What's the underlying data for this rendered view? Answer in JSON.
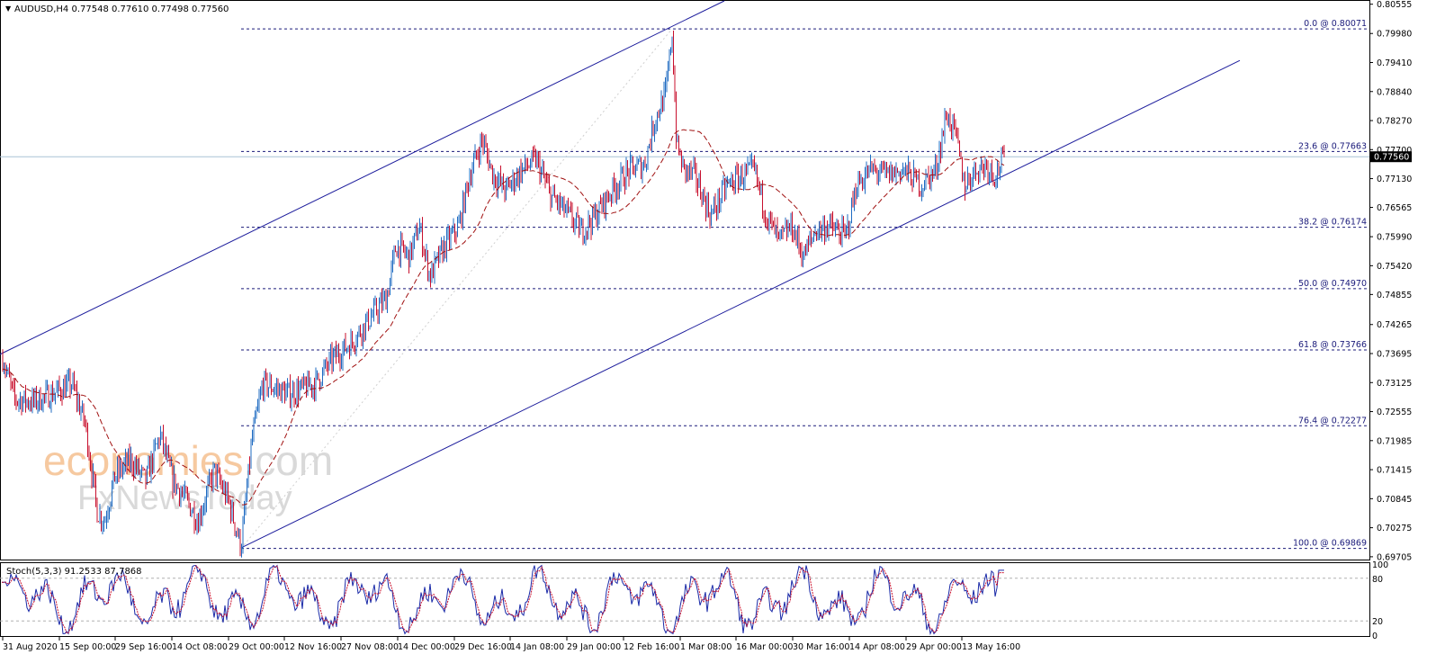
{
  "header": {
    "arrow": "▼",
    "text": "AUDUSD,H4  0.77548 0.77610 0.77498 0.77560"
  },
  "current_price_label": "0.77560",
  "stoch_header": "Stoch(5,3,3) 91.2533 87.7868",
  "watermark": {
    "part1": "economies",
    "part2": ".com",
    "line2": "FxNewsToday"
  },
  "colors": {
    "bull": "#1f6bc2",
    "bear": "#c8102e",
    "ma": "#a01010",
    "channel": "#1c1c9c",
    "fib": "#1a1a7a",
    "stoch_main": "#1a2aa8",
    "stoch_signal": "#c8102e"
  },
  "chart_data": {
    "type": "candlestick",
    "symbol": "AUDUSD",
    "timeframe": "H4",
    "ylim": [
      0.6965,
      0.8062
    ],
    "price_ticks": [
      "0.80555",
      "0.79980",
      "0.79410",
      "0.78840",
      "0.78270",
      "0.77700",
      "0.77130",
      "0.76565",
      "0.75990",
      "0.75420",
      "0.74855",
      "0.74265",
      "0.73695",
      "0.73125",
      "0.72555",
      "0.71985",
      "0.71415",
      "0.70845",
      "0.70275",
      "0.69705"
    ],
    "time_ticks": [
      "31 Aug 2020",
      "15 Sep 00:00",
      "29 Sep 16:00",
      "14 Oct 08:00",
      "29 Oct 00:00",
      "12 Nov 16:00",
      "27 Nov 08:00",
      "14 Dec 00:00",
      "29 Dec 16:00",
      "14 Jan 08:00",
      "29 Jan 00:00",
      "12 Feb 16:00",
      "1 Mar 08:00",
      "16 Mar 00:00",
      "30 Mar 16:00",
      "14 Apr 08:00",
      "29 Apr 00:00",
      "13 May 16:00"
    ],
    "fib_levels": [
      {
        "label": "0.0 @ 0.80071",
        "value": 0.80071
      },
      {
        "label": "23.6 @ 0.77663",
        "value": 0.77663
      },
      {
        "label": "38.2 @ 0.76174",
        "value": 0.76174
      },
      {
        "label": "50.0 @ 0.74970",
        "value": 0.7497
      },
      {
        "label": "61.8 @ 0.73766",
        "value": 0.73766
      },
      {
        "label": "76.4 @ 0.72277",
        "value": 0.72277
      },
      {
        "label": "100.0 @ 0.69869",
        "value": 0.69869
      }
    ],
    "current_price": 0.7756,
    "price_path": [
      [
        0,
        0.738
      ],
      [
        16,
        0.728
      ],
      [
        38,
        0.7275
      ],
      [
        58,
        0.729
      ],
      [
        80,
        0.731
      ],
      [
        95,
        0.723
      ],
      [
        108,
        0.706
      ],
      [
        116,
        0.704
      ],
      [
        128,
        0.713
      ],
      [
        145,
        0.716
      ],
      [
        162,
        0.712
      ],
      [
        178,
        0.721
      ],
      [
        192,
        0.712
      ],
      [
        208,
        0.708
      ],
      [
        220,
        0.704
      ],
      [
        238,
        0.714
      ],
      [
        254,
        0.708
      ],
      [
        268,
        0.699
      ],
      [
        280,
        0.72
      ],
      [
        292,
        0.731
      ],
      [
        308,
        0.73
      ],
      [
        320,
        0.729
      ],
      [
        336,
        0.73
      ],
      [
        350,
        0.731
      ],
      [
        370,
        0.736
      ],
      [
        390,
        0.739
      ],
      [
        412,
        0.744
      ],
      [
        430,
        0.748
      ],
      [
        440,
        0.758
      ],
      [
        455,
        0.756
      ],
      [
        466,
        0.762
      ],
      [
        478,
        0.752
      ],
      [
        494,
        0.758
      ],
      [
        510,
        0.762
      ],
      [
        522,
        0.772
      ],
      [
        536,
        0.779
      ],
      [
        548,
        0.772
      ],
      [
        562,
        0.769
      ],
      [
        580,
        0.773
      ],
      [
        596,
        0.775
      ],
      [
        612,
        0.768
      ],
      [
        628,
        0.765
      ],
      [
        646,
        0.761
      ],
      [
        662,
        0.764
      ],
      [
        680,
        0.769
      ],
      [
        700,
        0.773
      ],
      [
        716,
        0.774
      ],
      [
        728,
        0.783
      ],
      [
        740,
        0.788
      ],
      [
        747,
        0.8
      ],
      [
        752,
        0.778
      ],
      [
        760,
        0.773
      ],
      [
        772,
        0.772
      ],
      [
        790,
        0.764
      ],
      [
        808,
        0.77
      ],
      [
        826,
        0.772
      ],
      [
        838,
        0.773
      ],
      [
        852,
        0.764
      ],
      [
        866,
        0.759
      ],
      [
        880,
        0.762
      ],
      [
        893,
        0.756
      ],
      [
        906,
        0.761
      ],
      [
        920,
        0.762
      ],
      [
        940,
        0.76
      ],
      [
        952,
        0.77
      ],
      [
        968,
        0.773
      ],
      [
        986,
        0.772
      ],
      [
        1004,
        0.773
      ],
      [
        1024,
        0.77
      ],
      [
        1040,
        0.773
      ],
      [
        1052,
        0.784
      ],
      [
        1062,
        0.78
      ],
      [
        1072,
        0.77
      ],
      [
        1084,
        0.773
      ],
      [
        1096,
        0.774
      ],
      [
        1106,
        0.772
      ],
      [
        1116,
        0.7756
      ]
    ],
    "channel": {
      "upper": [
        [
          0,
          0.7368
        ],
        [
          805,
          0.8062
        ]
      ],
      "lower": [
        [
          268,
          0.6988
        ],
        [
          1378,
          0.7945
        ]
      ]
    },
    "stochastic": {
      "k": 91.2533,
      "d": 87.7868,
      "levels": [
        0,
        20,
        80,
        100
      ],
      "tick_labels": [
        "100",
        "80",
        "20",
        "0"
      ]
    }
  }
}
